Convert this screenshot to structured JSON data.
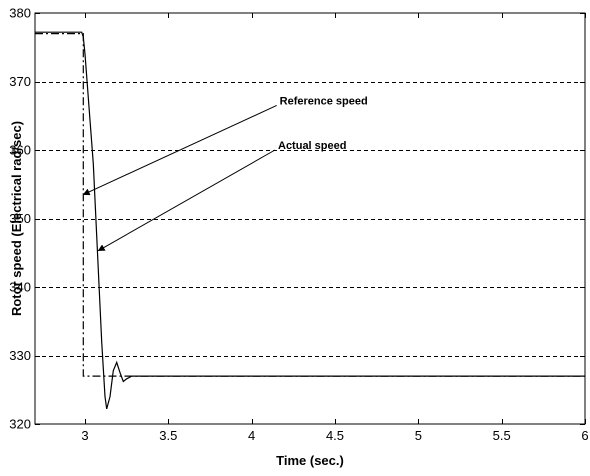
{
  "chart_data": {
    "type": "line",
    "title": "",
    "xlabel": "Time (sec.)",
    "ylabel": "Rotor speed (Electrical rad/sec)",
    "xlim": [
      2.7,
      6
    ],
    "ylim": [
      320,
      380
    ],
    "grid": "horizontal-dashed",
    "legend": "none",
    "x_ticks": [
      3,
      3.5,
      4,
      4.5,
      5,
      5.5,
      6
    ],
    "x_tick_labels": [
      "3",
      "3.5",
      "4",
      "4.5",
      "5",
      "5.5",
      "6"
    ],
    "y_ticks": [
      320,
      330,
      340,
      350,
      360,
      370,
      380
    ],
    "y_tick_labels": [
      "320",
      "330",
      "340",
      "350",
      "360",
      "370",
      "380"
    ],
    "series": [
      {
        "name": "Reference speed",
        "style": "dash-dot",
        "x": [
          2.7,
          2.99,
          2.99,
          6.0
        ],
        "y": [
          377,
          377,
          327,
          327
        ]
      },
      {
        "name": "Actual speed",
        "style": "solid",
        "x": [
          2.7,
          2.98,
          2.99,
          3.0,
          3.05,
          3.1,
          3.12,
          3.13,
          3.15,
          3.17,
          3.19,
          3.21,
          3.23,
          3.25,
          3.28,
          3.35,
          4.0,
          5.0,
          6.0
        ],
        "y": [
          377.2,
          377.2,
          376.5,
          374.0,
          358.0,
          332.0,
          324.0,
          322.2,
          324.0,
          327.8,
          329.0,
          327.5,
          326.2,
          326.6,
          327.0,
          327.0,
          327.0,
          327.0,
          327.0
        ]
      }
    ],
    "annotations": [
      {
        "text": "Reference speed",
        "label_at": [
          4.15,
          366.5
        ],
        "arrow_to": [
          2.99,
          353.5
        ]
      },
      {
        "text": "Actual speed",
        "label_at": [
          4.14,
          360.0
        ],
        "arrow_to": [
          3.08,
          345.3
        ]
      }
    ],
    "colors": {
      "line": "#000000",
      "grid": "#000000",
      "background": "#ffffff"
    }
  }
}
